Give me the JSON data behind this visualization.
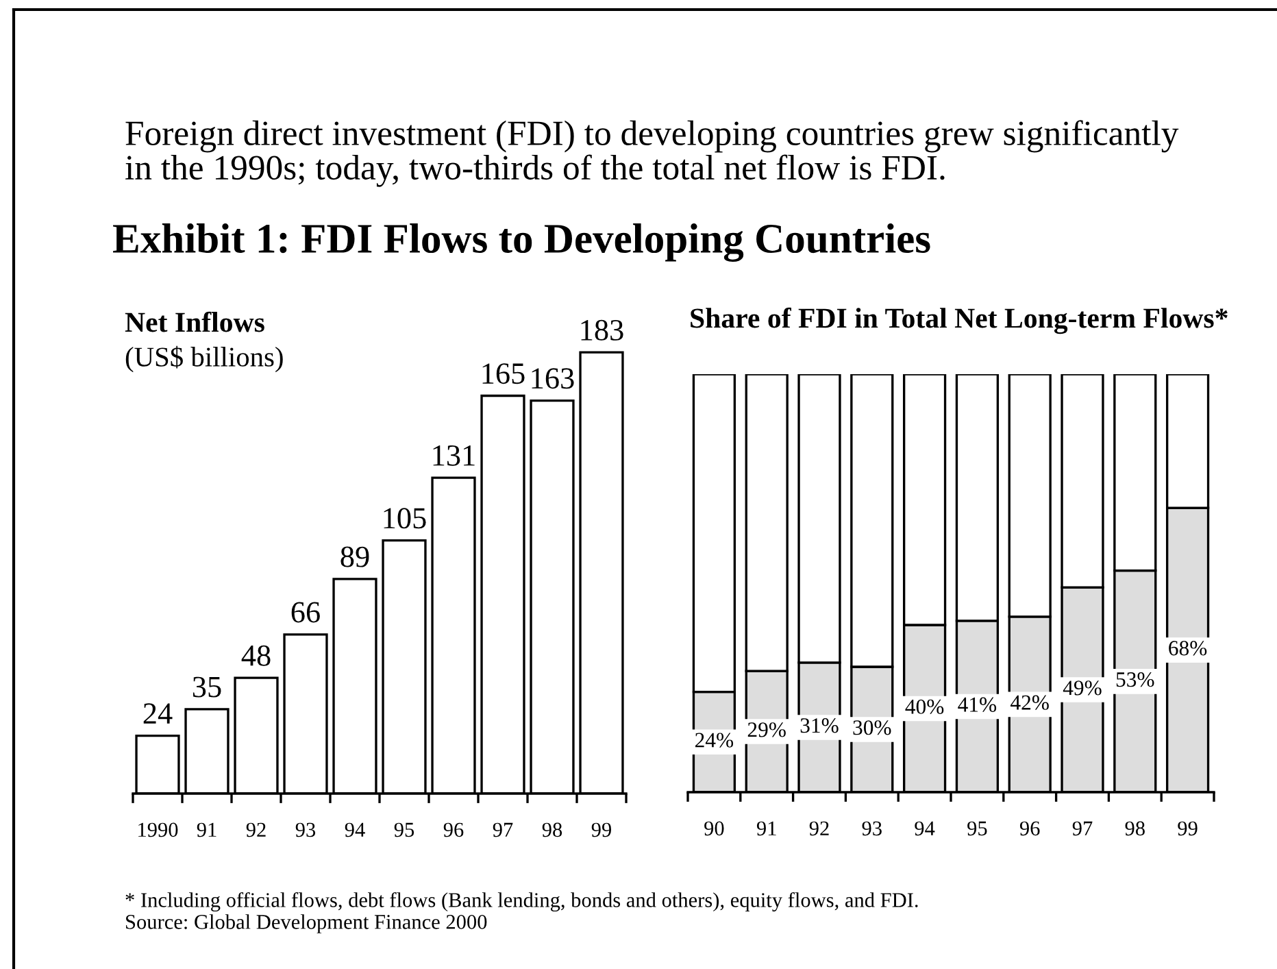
{
  "chart_data": [
    {
      "type": "other",
      "subtitle": "Foreign direct investment (FDI) to developing countries grew significantly\nin the 1990s; today, two-thirds of the total net flow is FDI.",
      "title": "Exhibit 1: FDI Flows to Developing Countries",
      "annotations": [
        "* Including official flows, debt flows (Bank lending, bonds and others), equity flows, and FDI.",
        "Source: Global Development Finance 2000"
      ]
    },
    {
      "type": "bar",
      "title": "Net Inflows",
      "subtitle": "(US$ billions)",
      "categories": [
        "1990",
        "91",
        "92",
        "93",
        "94",
        "95",
        "96",
        "97",
        "98",
        "99"
      ],
      "values": [
        24,
        35,
        48,
        66,
        89,
        105,
        131,
        165,
        163,
        183
      ],
      "color": "#ffffff",
      "data_labels": true,
      "tick_labels": "x"
    },
    {
      "type": "bar",
      "title": "Share of FDI in Total Net Long-term Flows*",
      "categories": [
        "90",
        "91",
        "92",
        "93",
        "94",
        "95",
        "96",
        "97",
        "98",
        "99"
      ],
      "stacked": true,
      "series": [
        {
          "color": "#dddddd",
          "values": [
            24,
            29,
            31,
            30,
            40,
            41,
            42,
            49,
            53,
            68
          ],
          "value_labels": [
            "24%",
            "29%",
            "31%",
            "30%",
            "40%",
            "41%",
            "42%",
            "49%",
            "53%",
            "68%"
          ]
        },
        {
          "color": "#ffffff",
          "values": [
            76,
            71,
            69,
            70,
            60,
            59,
            58,
            51,
            47,
            32
          ]
        }
      ],
      "ylim": [
        0,
        100
      ],
      "tick_labels": "x"
    }
  ]
}
